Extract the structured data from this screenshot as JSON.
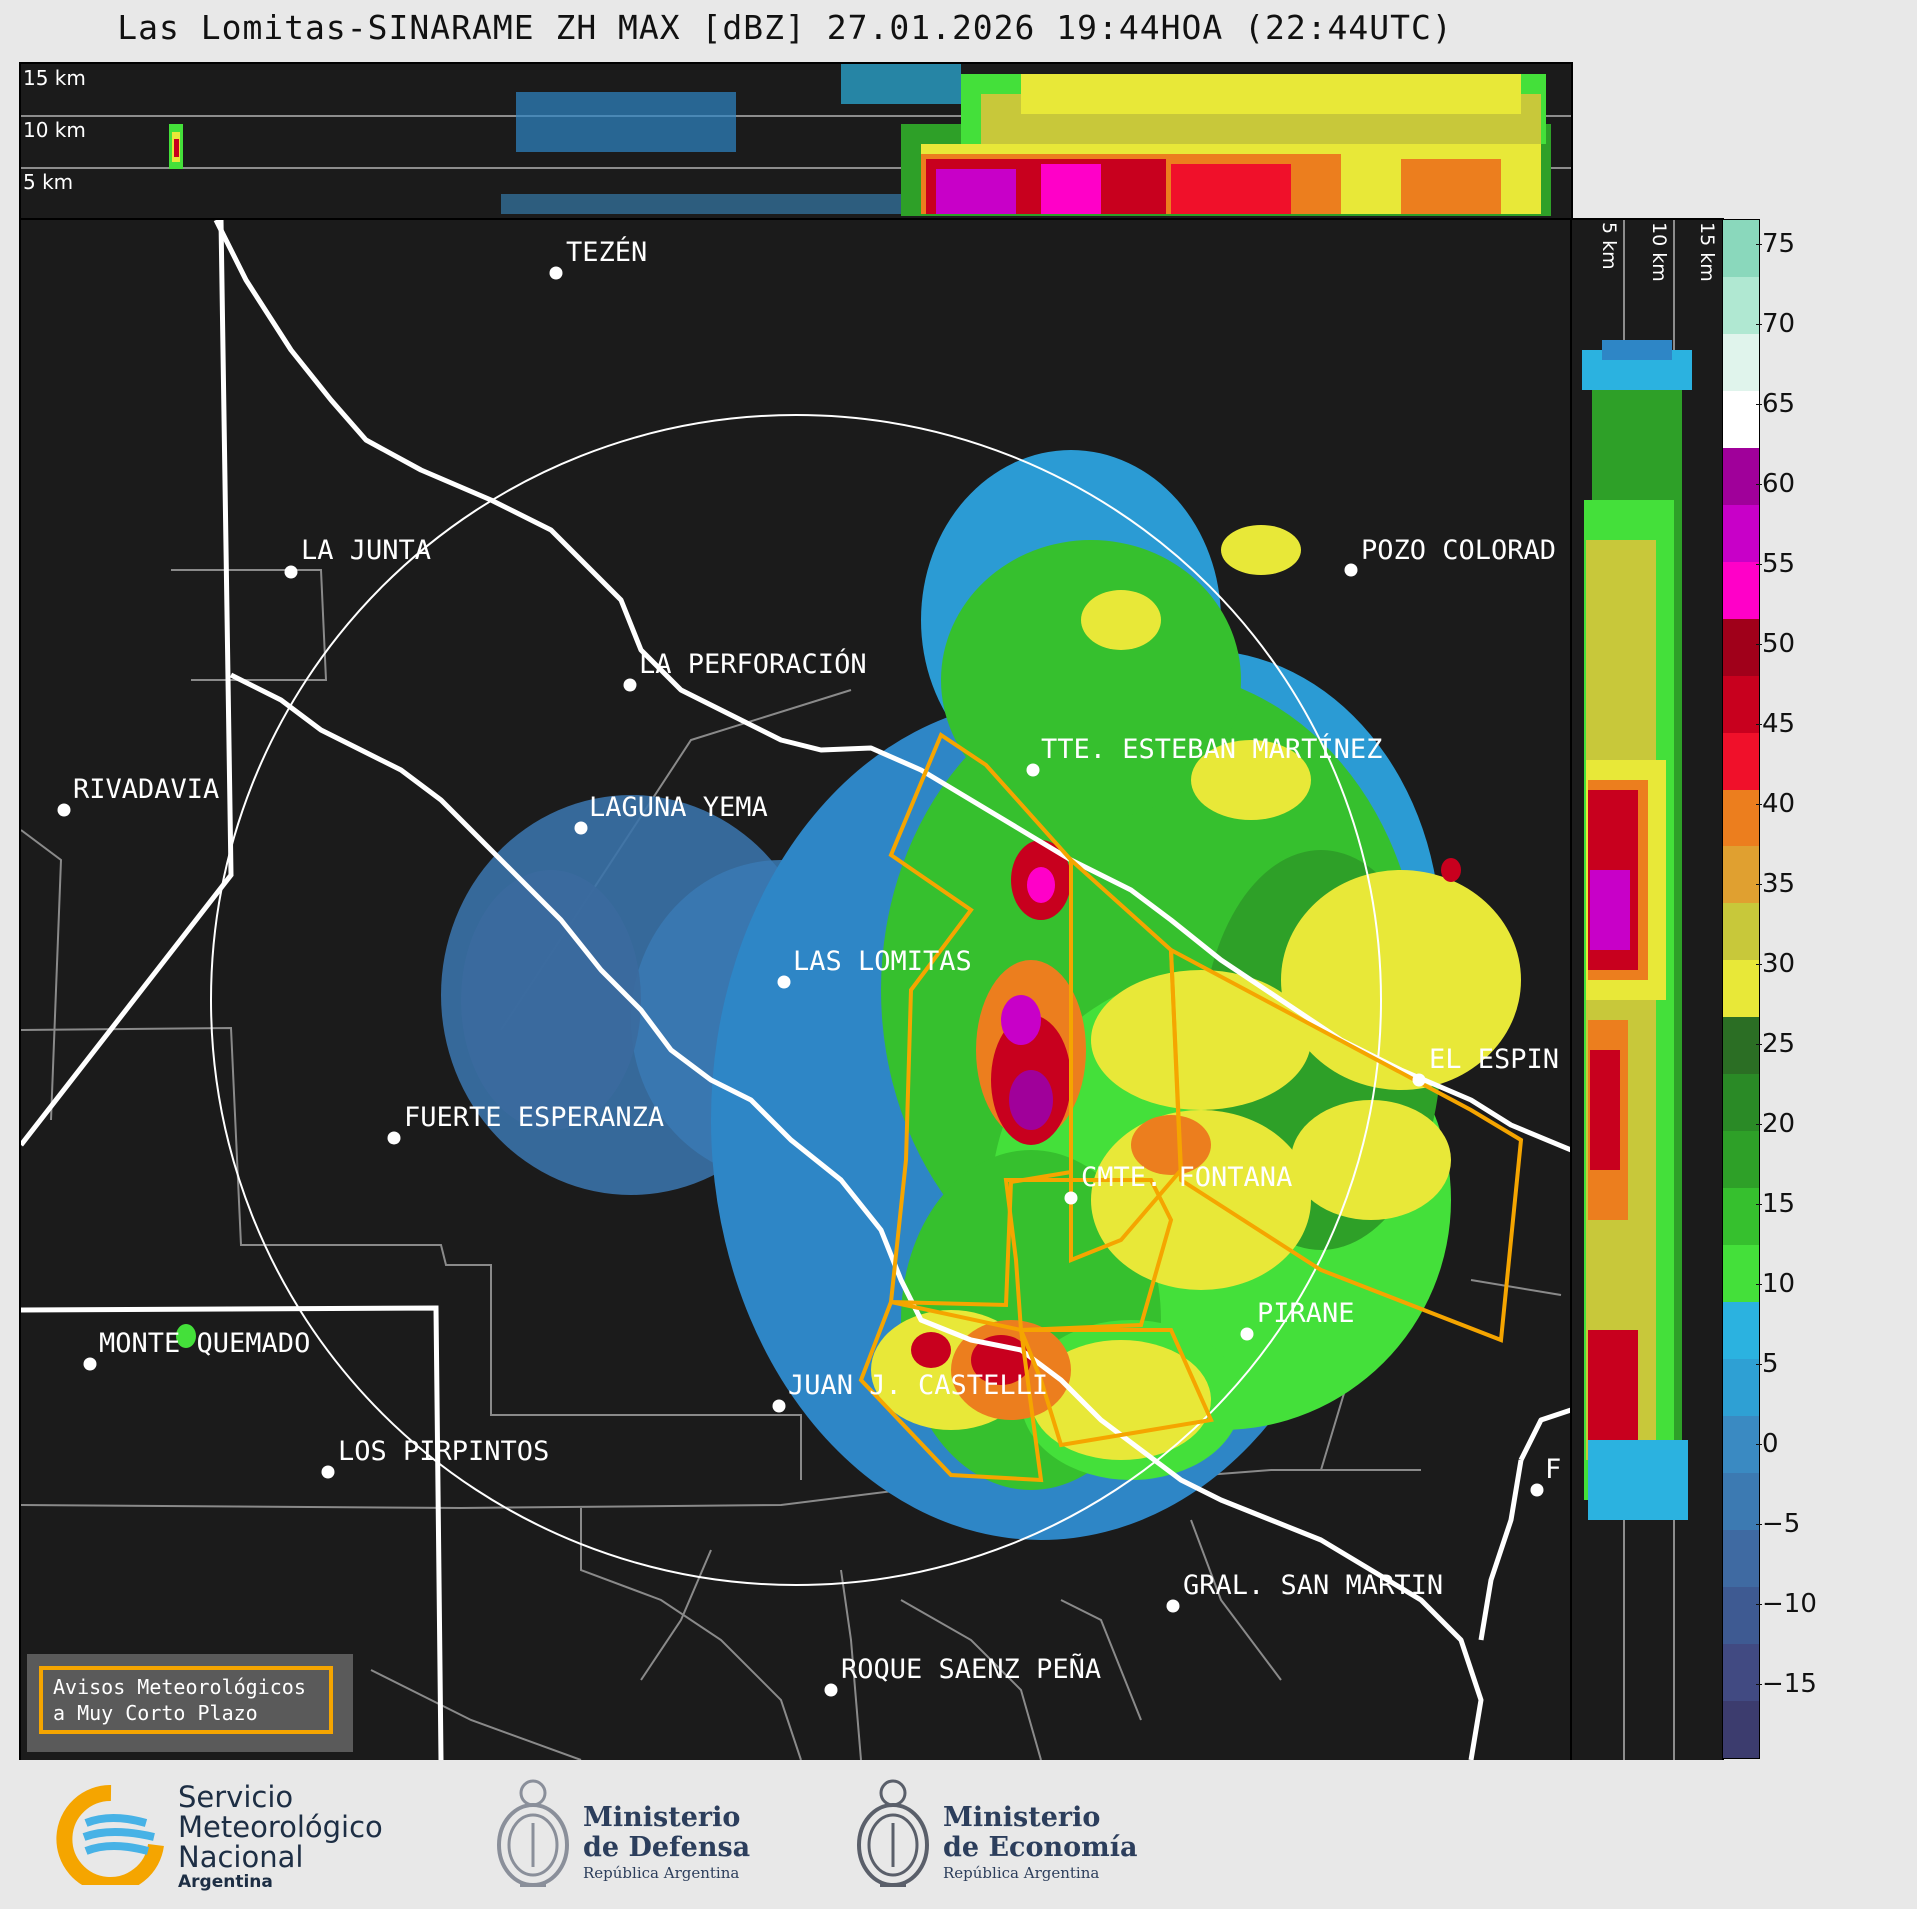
{
  "title": "Las Lomitas-SINARAME ZH MAX [dBZ] 27.01.2026 19:44HOA (22:44UTC)",
  "top_profile": {
    "altitude_labels": [
      "15 km",
      "10 km",
      "5 km"
    ]
  },
  "side_profile": {
    "altitude_labels": [
      "5 km",
      "10 km",
      "15 km"
    ]
  },
  "places": [
    {
      "name": "TEZÉN"
    },
    {
      "name": "LA JUNTA"
    },
    {
      "name": "POZO COLORAD"
    },
    {
      "name": "LA PERFORACIÓN"
    },
    {
      "name": "TTE. ESTEBAN MARTÍNEZ"
    },
    {
      "name": "RIVADAVIA"
    },
    {
      "name": "LAGUNA YEMA"
    },
    {
      "name": "LAS LOMITAS"
    },
    {
      "name": "EL ESPIN"
    },
    {
      "name": "FUERTE ESPERANZA"
    },
    {
      "name": "CMTE. FONTANA"
    },
    {
      "name": "PIRANE"
    },
    {
      "name": "MONTE QUEMADO"
    },
    {
      "name": "JUAN J. CASTELLI"
    },
    {
      "name": "LOS PIRPINTOS"
    },
    {
      "name": "GRAL. SAN MARTIN"
    },
    {
      "name": "ROQUE SAENZ PEÑA"
    },
    {
      "name": "F"
    }
  ],
  "legend": {
    "line1": "Avisos Meteorológicos",
    "line2": "a Muy Corto Plazo",
    "warning_color": "#f5a500"
  },
  "colorbar": {
    "unit": "dBZ",
    "ticks": [
      "75",
      "70",
      "65",
      "60",
      "55",
      "50",
      "45",
      "40",
      "35",
      "30",
      "25",
      "20",
      "15",
      "10",
      "5",
      "0",
      "−5",
      "−10",
      "−15"
    ],
    "colors": [
      "#3c3c6e",
      "#414a82",
      "#3e5a92",
      "#3f6aa2",
      "#3c7ab2",
      "#3a8ac2",
      "#2ea0d4",
      "#2bb2e0",
      "#44e03a",
      "#36c02e",
      "#2ea028",
      "#2a8a26",
      "#2b6e24",
      "#e8e838",
      "#c8c83a",
      "#e0a030",
      "#ec7e1e",
      "#f0102a",
      "#c8001e",
      "#a0001a",
      "#ff00c8",
      "#c800c8",
      "#a0009a",
      "#ffffff",
      "#e0f4ec",
      "#b0e8d2",
      "#8ad8bc"
    ]
  },
  "footer": {
    "smn_line1": "Servicio",
    "smn_line2": "Meteorológico",
    "smn_line3": "Nacional",
    "smn_line4": "Argentina",
    "defensa_line1": "Ministerio",
    "defensa_line2": "de Defensa",
    "defensa_line3": "República Argentina",
    "economia_line1": "Ministerio",
    "economia_line2": "de Economía",
    "economia_line3": "República Argentina"
  }
}
